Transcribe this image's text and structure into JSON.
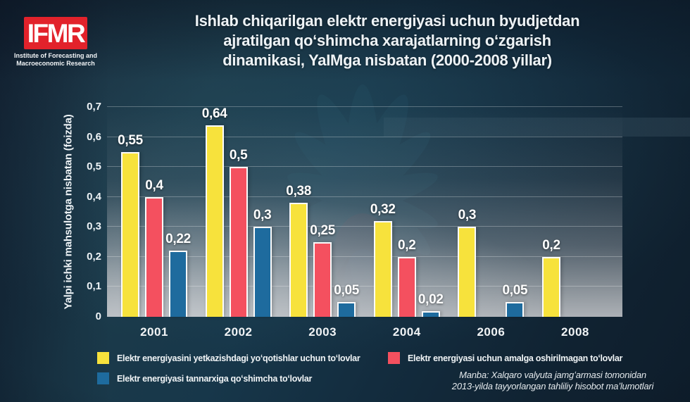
{
  "header": {
    "logo": {
      "acronym": "IFMR",
      "org_line1": "Institute of Forecasting and",
      "org_line2": "Macroeconomic Research",
      "box_color": "#e2222b"
    },
    "title_lines": [
      "Ishlab chiqarilgan elektr energiyasi uchun byudjetdan",
      "ajratilgan qoʻshimcha xarajatlarning oʻzgarish",
      "dinamikasi, YaIMga nisbatan (2000-2008 yillar)"
    ]
  },
  "chart_data": {
    "type": "bar",
    "title": "Ishlab chiqarilgan elektr energiyasi uchun byudjetdan ajratilgan qoʻshimcha xarajatlarning oʻzgarish dinamikasi, YaIMga nisbatan (2000-2008 yillar)",
    "xlabel": "",
    "ylabel": "Yalpi ichki mahsulotga nisbatan (foizda)",
    "ylim": [
      0,
      0.7
    ],
    "grid": true,
    "legend_position": "bottom",
    "decimal_separator": ",",
    "yticks": [
      {
        "value": 0.7,
        "label": "0,7"
      },
      {
        "value": 0.6,
        "label": "0,6"
      },
      {
        "value": 0.5,
        "label": "0,5"
      },
      {
        "value": 0.4,
        "label": "0,4"
      },
      {
        "value": 0.3,
        "label": "0,3"
      },
      {
        "value": 0.2,
        "label": "0,2"
      },
      {
        "value": 0.1,
        "label": "0,1"
      },
      {
        "value": 0,
        "label": "0"
      }
    ],
    "categories": [
      "2001",
      "2002",
      "2003",
      "2004",
      "2006",
      "2008"
    ],
    "series": [
      {
        "key": "losses-payments",
        "name": "Elektr energiyasini yetkazishdagi yoʻqotishlar uchun toʻlovlar",
        "color": "#f7e23c",
        "values": [
          0.55,
          0.64,
          0.38,
          0.32,
          0.3,
          0.2
        ],
        "labels": [
          "0,55",
          "0,64",
          "0,38",
          "0,32",
          "0,3",
          "0,2"
        ]
      },
      {
        "key": "unrealized-payments",
        "name": "Elektr energiyasi uchun amalga oshirilmagan toʻlovlar",
        "color": "#f4505f",
        "values": [
          0.4,
          0.5,
          0.25,
          0.2,
          null,
          null
        ],
        "labels": [
          "0,4",
          "0,5",
          "0,25",
          "0,2",
          null,
          null
        ]
      },
      {
        "key": "cost-surcharge",
        "name": "Elektr energiyasi tannarxiga qoʻshimcha toʻlovlar",
        "color": "#1e6b9e",
        "values": [
          0.22,
          0.3,
          0.05,
          0.02,
          0.05,
          null
        ],
        "labels": [
          "0,22",
          "0,3",
          "0,05",
          "0,02",
          "0,05",
          null
        ]
      }
    ]
  },
  "legend": {
    "items": [
      {
        "label": "Elektr energiyasini yetkazishdagi yoʻqotishlar uchun toʻlovlar",
        "color": "#f7e23c"
      },
      {
        "label": "Elektr energiyasi uchun amalga oshirilmagan toʻlovlar",
        "color": "#f4505f"
      },
      {
        "label": "Elektr energiyasi tannarxiga qoʻshimcha toʻlovlar",
        "color": "#1e6b9e"
      }
    ]
  },
  "source_note": {
    "line1": "Manba: Xalqaro valyuta jamgʻarmasi tomonidan",
    "line2": "2013-yilda tayyorlangan tahliliy hisobot maʼlumotlari"
  },
  "colors": {
    "bar_yellow": "#f7e23c",
    "bar_red": "#f4505f",
    "bar_blue": "#1e6b9e",
    "logo_red": "#e2222b",
    "background_dark": "#132c3e",
    "text_light": "#eef3f6"
  }
}
